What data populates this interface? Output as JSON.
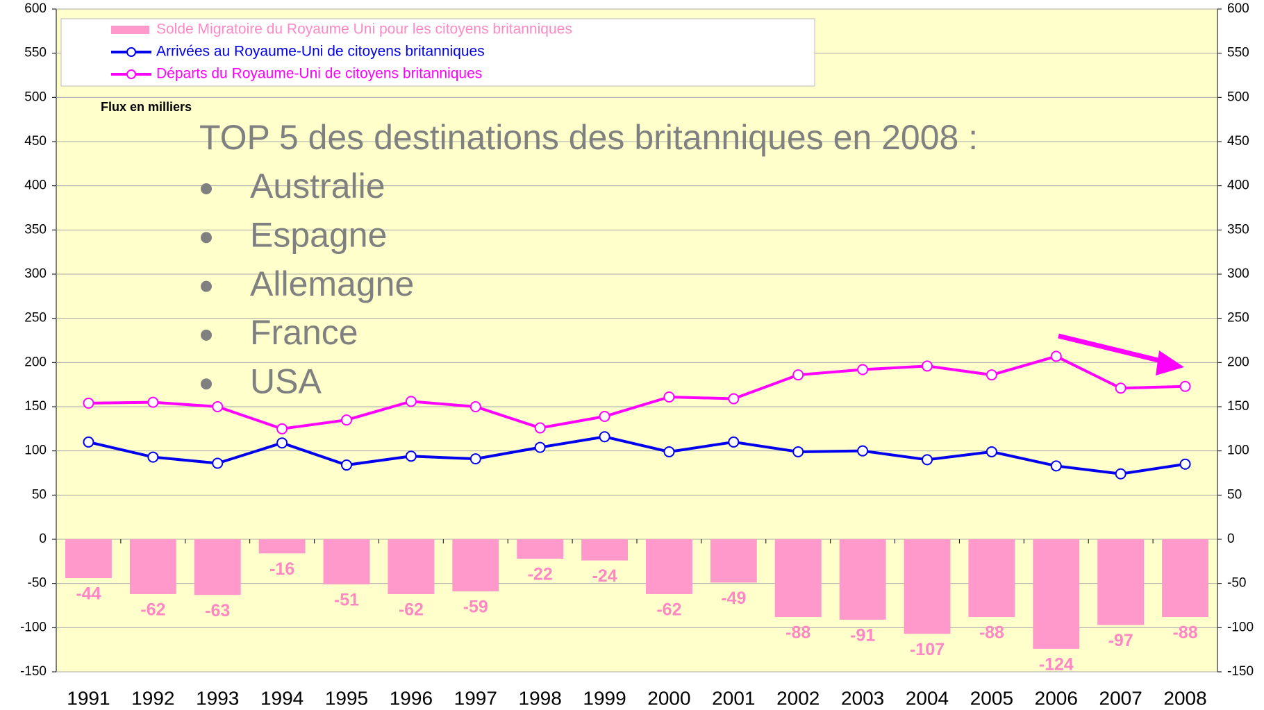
{
  "chart_data": {
    "type": "bar_line",
    "unit_label": "Flux en milliers",
    "text_box": {
      "title": "TOP 5 des destinations des britanniques en 2008 :",
      "items": [
        "Australie",
        "Espagne",
        "Allemagne",
        "France",
        "USA"
      ]
    },
    "categories": [
      "1991",
      "1992",
      "1993",
      "1994",
      "1995",
      "1996",
      "1997",
      "1998",
      "1999",
      "2000",
      "2001",
      "2002",
      "2003",
      "2004",
      "2005",
      "2006",
      "2007",
      "2008"
    ],
    "series": [
      {
        "name": "Solde Migratoire du Royaume Uni pour les citoyens britanniques",
        "type": "bar",
        "color": "#ff99cc",
        "values": [
          -44,
          -62,
          -63,
          -16,
          -51,
          -62,
          -59,
          -22,
          -24,
          -62,
          -49,
          -88,
          -91,
          -107,
          -88,
          -124,
          -97,
          -88
        ]
      },
      {
        "name": "Arrivées au Royaume-Uni de citoyens britanniques",
        "type": "line",
        "color": "#0000ee",
        "values": [
          110,
          93,
          86,
          109,
          84,
          94,
          91,
          104,
          116,
          99,
          110,
          99,
          100,
          90,
          99,
          83,
          74,
          85
        ]
      },
      {
        "name": "Départs du Royaume-Uni de citoyens britanniques",
        "type": "line",
        "color": "#ff00ff",
        "values": [
          154,
          155,
          150,
          125,
          135,
          156,
          150,
          126,
          139,
          161,
          159,
          186,
          192,
          196,
          186,
          207,
          171,
          173
        ]
      }
    ],
    "ylim": [
      -150,
      600
    ],
    "yticks": [
      -150,
      -100,
      -50,
      0,
      50,
      100,
      150,
      200,
      250,
      300,
      350,
      400,
      450,
      500,
      550,
      600
    ],
    "y2lim": [
      -150,
      600
    ],
    "y2ticks": [
      -150,
      -100,
      -50,
      0,
      50,
      100,
      150,
      200,
      250,
      300,
      350,
      400,
      450,
      500,
      550,
      600
    ],
    "grid": true
  }
}
